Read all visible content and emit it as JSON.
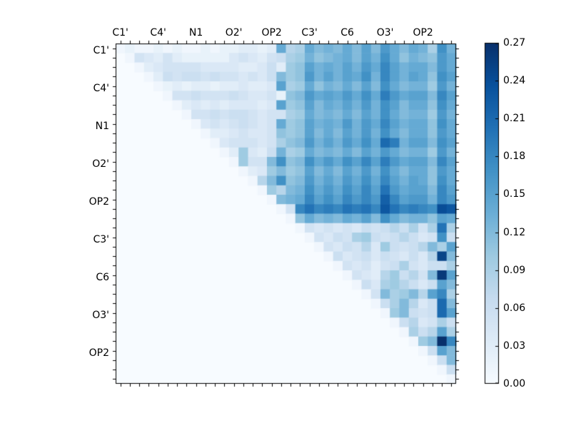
{
  "figure": {
    "background_color": "#ffffff",
    "frame_color": "#000000",
    "text_color": "#000000"
  },
  "chart_data": {
    "type": "heatmap",
    "title": "",
    "xlabel": "",
    "ylabel": "",
    "n": 36,
    "structure": "upper-triangular matrix, 36x36 cells, 9 group labels every 4 cells",
    "x_tick_labels": [
      "C1'",
      "C4'",
      "N1",
      "O2'",
      "OP2",
      "C3'",
      "C6",
      "O3'",
      "OP2"
    ],
    "y_tick_labels": [
      "C1'",
      "C4'",
      "N1",
      "O2'",
      "OP2",
      "C3'",
      "C6",
      "O3'",
      "OP2"
    ],
    "label_every_n_cells": 4,
    "vmin": 0.0,
    "vmax": 0.27,
    "colormap": "Blues",
    "colormap_stops": [
      [
        0.0,
        247,
        251,
        255
      ],
      [
        0.125,
        222,
        235,
        247
      ],
      [
        0.25,
        198,
        219,
        239
      ],
      [
        0.375,
        158,
        202,
        225
      ],
      [
        0.5,
        107,
        174,
        214
      ],
      [
        0.625,
        66,
        146,
        198
      ],
      [
        0.75,
        33,
        113,
        181
      ],
      [
        0.875,
        8,
        81,
        156
      ],
      [
        1.0,
        8,
        48,
        107
      ]
    ],
    "colorbar": {
      "tick_labels": [
        "0.00",
        "0.03",
        "0.06",
        "0.09",
        "0.12",
        "0.15",
        "0.18",
        "0.21",
        "0.24",
        "0.27"
      ],
      "tick_values": [
        0.0,
        0.03,
        0.06,
        0.09,
        0.12,
        0.15,
        0.18,
        0.21,
        0.24,
        0.27
      ],
      "orientation": "vertical",
      "position": "right"
    },
    "matrix": [
      [
        0.01,
        0.02,
        0.01,
        0.01,
        0.02,
        0.01,
        0.02,
        0.01,
        0.01,
        0.02,
        0.01,
        0.02,
        0.02,
        0.03,
        0.03,
        0.02,
        0.03,
        0.14,
        0.08,
        0.09,
        0.14,
        0.12,
        0.13,
        0.12,
        0.14,
        0.12,
        0.15,
        0.12,
        0.16,
        0.14,
        0.12,
        0.14,
        0.13,
        0.09,
        0.17,
        0.13
      ],
      [
        0,
        0.01,
        0.05,
        0.04,
        0.03,
        0.05,
        0.03,
        0.02,
        0.02,
        0.02,
        0.02,
        0.02,
        0.04,
        0.05,
        0.04,
        0.03,
        0.05,
        0.06,
        0.09,
        0.1,
        0.13,
        0.11,
        0.12,
        0.13,
        0.14,
        0.12,
        0.15,
        0.13,
        0.17,
        0.14,
        0.11,
        0.13,
        0.12,
        0.11,
        0.16,
        0.14
      ],
      [
        0,
        0,
        0.01,
        0.03,
        0.04,
        0.05,
        0.05,
        0.05,
        0.05,
        0.04,
        0.04,
        0.04,
        0.04,
        0.03,
        0.03,
        0.04,
        0.06,
        0.03,
        0.1,
        0.11,
        0.15,
        0.13,
        0.14,
        0.13,
        0.15,
        0.13,
        0.16,
        0.14,
        0.18,
        0.15,
        0.13,
        0.14,
        0.14,
        0.12,
        0.16,
        0.14
      ],
      [
        0,
        0,
        0,
        0.01,
        0.03,
        0.06,
        0.05,
        0.06,
        0.06,
        0.05,
        0.06,
        0.05,
        0.05,
        0.04,
        0.05,
        0.04,
        0.06,
        0.12,
        0.1,
        0.11,
        0.16,
        0.13,
        0.15,
        0.13,
        0.15,
        0.14,
        0.17,
        0.13,
        0.18,
        0.15,
        0.13,
        0.15,
        0.14,
        0.11,
        0.17,
        0.15
      ],
      [
        0,
        0,
        0,
        0,
        0.01,
        0.02,
        0.03,
        0.02,
        0.03,
        0.03,
        0.02,
        0.03,
        0.03,
        0.04,
        0.03,
        0.03,
        0.04,
        0.15,
        0.09,
        0.1,
        0.14,
        0.11,
        0.13,
        0.12,
        0.14,
        0.12,
        0.15,
        0.12,
        0.17,
        0.14,
        0.12,
        0.13,
        0.13,
        0.1,
        0.16,
        0.13
      ],
      [
        0,
        0,
        0,
        0,
        0,
        0.01,
        0.05,
        0.05,
        0.06,
        0.05,
        0.05,
        0.05,
        0.06,
        0.05,
        0.04,
        0.04,
        0.05,
        0.02,
        0.11,
        0.12,
        0.16,
        0.14,
        0.15,
        0.14,
        0.16,
        0.14,
        0.17,
        0.14,
        0.19,
        0.16,
        0.14,
        0.15,
        0.15,
        0.12,
        0.18,
        0.15
      ],
      [
        0,
        0,
        0,
        0,
        0,
        0,
        0.01,
        0.03,
        0.04,
        0.03,
        0.04,
        0.03,
        0.04,
        0.04,
        0.04,
        0.03,
        0.04,
        0.15,
        0.1,
        0.11,
        0.15,
        0.12,
        0.14,
        0.13,
        0.15,
        0.13,
        0.16,
        0.13,
        0.17,
        0.15,
        0.12,
        0.14,
        0.14,
        0.11,
        0.17,
        0.14
      ],
      [
        0,
        0,
        0,
        0,
        0,
        0,
        0,
        0.01,
        0.05,
        0.05,
        0.06,
        0.05,
        0.06,
        0.06,
        0.05,
        0.04,
        0.05,
        0.05,
        0.09,
        0.1,
        0.14,
        0.12,
        0.13,
        0.12,
        0.14,
        0.12,
        0.15,
        0.13,
        0.17,
        0.14,
        0.12,
        0.13,
        0.13,
        0.1,
        0.16,
        0.13
      ],
      [
        0,
        0,
        0,
        0,
        0,
        0,
        0,
        0,
        0.01,
        0.04,
        0.05,
        0.04,
        0.05,
        0.06,
        0.05,
        0.04,
        0.05,
        0.14,
        0.1,
        0.11,
        0.15,
        0.13,
        0.14,
        0.13,
        0.16,
        0.13,
        0.16,
        0.14,
        0.18,
        0.15,
        0.13,
        0.14,
        0.14,
        0.11,
        0.17,
        0.14
      ],
      [
        0,
        0,
        0,
        0,
        0,
        0,
        0,
        0,
        0,
        0.01,
        0.03,
        0.03,
        0.04,
        0.05,
        0.04,
        0.04,
        0.05,
        0.11,
        0.1,
        0.11,
        0.15,
        0.12,
        0.14,
        0.12,
        0.15,
        0.13,
        0.16,
        0.13,
        0.17,
        0.14,
        0.12,
        0.14,
        0.14,
        0.11,
        0.16,
        0.14
      ],
      [
        0,
        0,
        0,
        0,
        0,
        0,
        0,
        0,
        0,
        0,
        0.01,
        0.04,
        0.05,
        0.05,
        0.05,
        0.04,
        0.05,
        0.09,
        0.11,
        0.12,
        0.16,
        0.13,
        0.15,
        0.13,
        0.16,
        0.14,
        0.17,
        0.14,
        0.21,
        0.19,
        0.13,
        0.15,
        0.15,
        0.12,
        0.17,
        0.15
      ],
      [
        0,
        0,
        0,
        0,
        0,
        0,
        0,
        0,
        0,
        0,
        0,
        0.01,
        0.03,
        0.1,
        0.04,
        0.03,
        0.06,
        0.13,
        0.09,
        0.1,
        0.14,
        0.12,
        0.13,
        0.12,
        0.14,
        0.12,
        0.15,
        0.13,
        0.16,
        0.14,
        0.12,
        0.13,
        0.13,
        0.1,
        0.16,
        0.13
      ],
      [
        0,
        0,
        0,
        0,
        0,
        0,
        0,
        0,
        0,
        0,
        0,
        0,
        0.01,
        0.1,
        0.05,
        0.05,
        0.12,
        0.17,
        0.11,
        0.12,
        0.17,
        0.14,
        0.16,
        0.14,
        0.17,
        0.15,
        0.18,
        0.15,
        0.19,
        0.16,
        0.14,
        0.15,
        0.15,
        0.12,
        0.18,
        0.15
      ],
      [
        0,
        0,
        0,
        0,
        0,
        0,
        0,
        0,
        0,
        0,
        0,
        0,
        0,
        0.01,
        0.03,
        0.04,
        0.1,
        0.12,
        0.1,
        0.11,
        0.15,
        0.12,
        0.14,
        0.12,
        0.15,
        0.13,
        0.16,
        0.13,
        0.17,
        0.14,
        0.12,
        0.14,
        0.14,
        0.11,
        0.16,
        0.14
      ],
      [
        0,
        0,
        0,
        0,
        0,
        0,
        0,
        0,
        0,
        0,
        0,
        0,
        0,
        0,
        0.01,
        0.08,
        0.12,
        0.17,
        0.11,
        0.12,
        0.16,
        0.13,
        0.15,
        0.13,
        0.16,
        0.14,
        0.17,
        0.14,
        0.18,
        0.15,
        0.13,
        0.15,
        0.14,
        0.11,
        0.17,
        0.14
      ],
      [
        0,
        0,
        0,
        0,
        0,
        0,
        0,
        0,
        0,
        0,
        0,
        0,
        0,
        0,
        0,
        0.01,
        0.1,
        0.08,
        0.12,
        0.13,
        0.17,
        0.14,
        0.16,
        0.14,
        0.17,
        0.15,
        0.18,
        0.15,
        0.2,
        0.16,
        0.14,
        0.15,
        0.15,
        0.12,
        0.18,
        0.15
      ],
      [
        0,
        0,
        0,
        0,
        0,
        0,
        0,
        0,
        0,
        0,
        0,
        0,
        0,
        0,
        0,
        0,
        0.01,
        0.12,
        0.13,
        0.14,
        0.18,
        0.15,
        0.17,
        0.15,
        0.18,
        0.16,
        0.18,
        0.16,
        0.22,
        0.18,
        0.15,
        0.16,
        0.16,
        0.13,
        0.18,
        0.16
      ],
      [
        0,
        0,
        0,
        0,
        0,
        0,
        0,
        0,
        0,
        0,
        0,
        0,
        0,
        0,
        0,
        0,
        0,
        0.01,
        0.05,
        0.18,
        0.2,
        0.18,
        0.19,
        0.18,
        0.2,
        0.19,
        0.2,
        0.18,
        0.23,
        0.2,
        0.18,
        0.19,
        0.18,
        0.17,
        0.24,
        0.23
      ],
      [
        0,
        0,
        0,
        0,
        0,
        0,
        0,
        0,
        0,
        0,
        0,
        0,
        0,
        0,
        0,
        0,
        0,
        0,
        0.01,
        0.11,
        0.14,
        0.12,
        0.13,
        0.12,
        0.14,
        0.13,
        0.15,
        0.12,
        0.17,
        0.14,
        0.12,
        0.13,
        0.13,
        0.11,
        0.15,
        0.14
      ],
      [
        0,
        0,
        0,
        0,
        0,
        0,
        0,
        0,
        0,
        0,
        0,
        0,
        0,
        0,
        0,
        0,
        0,
        0,
        0,
        0.01,
        0.05,
        0.04,
        0.05,
        0.04,
        0.05,
        0.04,
        0.06,
        0.05,
        0.06,
        0.08,
        0.06,
        0.09,
        0.05,
        0.09,
        0.2,
        0.09
      ],
      [
        0,
        0,
        0,
        0,
        0,
        0,
        0,
        0,
        0,
        0,
        0,
        0,
        0,
        0,
        0,
        0,
        0,
        0,
        0,
        0,
        0.01,
        0.05,
        0.04,
        0.06,
        0.05,
        0.09,
        0.1,
        0.06,
        0.05,
        0.06,
        0.08,
        0.06,
        0.04,
        0.05,
        0.17,
        0.06
      ],
      [
        0,
        0,
        0,
        0,
        0,
        0,
        0,
        0,
        0,
        0,
        0,
        0,
        0,
        0,
        0,
        0,
        0,
        0,
        0,
        0,
        0,
        0.01,
        0.05,
        0.04,
        0.06,
        0.05,
        0.08,
        0.04,
        0.1,
        0.06,
        0.05,
        0.06,
        0.08,
        0.12,
        0.09,
        0.15
      ],
      [
        0,
        0,
        0,
        0,
        0,
        0,
        0,
        0,
        0,
        0,
        0,
        0,
        0,
        0,
        0,
        0,
        0,
        0,
        0,
        0,
        0,
        0,
        0.01,
        0.06,
        0.04,
        0.05,
        0.06,
        0.04,
        0.06,
        0.05,
        0.04,
        0.06,
        0.04,
        0.08,
        0.25,
        0.12
      ],
      [
        0,
        0,
        0,
        0,
        0,
        0,
        0,
        0,
        0,
        0,
        0,
        0,
        0,
        0,
        0,
        0,
        0,
        0,
        0,
        0,
        0,
        0,
        0,
        0.01,
        0.05,
        0.04,
        0.05,
        0.03,
        0.05,
        0.06,
        0.09,
        0.05,
        0.04,
        0.06,
        0.06,
        0.09
      ],
      [
        0,
        0,
        0,
        0,
        0,
        0,
        0,
        0,
        0,
        0,
        0,
        0,
        0,
        0,
        0,
        0,
        0,
        0,
        0,
        0,
        0,
        0,
        0,
        0,
        0.01,
        0.05,
        0.04,
        0.03,
        0.08,
        0.1,
        0.06,
        0.08,
        0.05,
        0.12,
        0.26,
        0.15
      ],
      [
        0,
        0,
        0,
        0,
        0,
        0,
        0,
        0,
        0,
        0,
        0,
        0,
        0,
        0,
        0,
        0,
        0,
        0,
        0,
        0,
        0,
        0,
        0,
        0,
        0,
        0.01,
        0.06,
        0.04,
        0.09,
        0.1,
        0.08,
        0.06,
        0.04,
        0.06,
        0.15,
        0.12
      ],
      [
        0,
        0,
        0,
        0,
        0,
        0,
        0,
        0,
        0,
        0,
        0,
        0,
        0,
        0,
        0,
        0,
        0,
        0,
        0,
        0,
        0,
        0,
        0,
        0,
        0,
        0,
        0.01,
        0.05,
        0.12,
        0.09,
        0.1,
        0.12,
        0.08,
        0.15,
        0.18,
        0.09
      ],
      [
        0,
        0,
        0,
        0,
        0,
        0,
        0,
        0,
        0,
        0,
        0,
        0,
        0,
        0,
        0,
        0,
        0,
        0,
        0,
        0,
        0,
        0,
        0,
        0,
        0,
        0,
        0,
        0.01,
        0.06,
        0.09,
        0.12,
        0.08,
        0.04,
        0.06,
        0.21,
        0.12
      ],
      [
        0,
        0,
        0,
        0,
        0,
        0,
        0,
        0,
        0,
        0,
        0,
        0,
        0,
        0,
        0,
        0,
        0,
        0,
        0,
        0,
        0,
        0,
        0,
        0,
        0,
        0,
        0,
        0,
        0.01,
        0.1,
        0.12,
        0.06,
        0.05,
        0.06,
        0.21,
        0.15
      ],
      [
        0,
        0,
        0,
        0,
        0,
        0,
        0,
        0,
        0,
        0,
        0,
        0,
        0,
        0,
        0,
        0,
        0,
        0,
        0,
        0,
        0,
        0,
        0,
        0,
        0,
        0,
        0,
        0,
        0,
        0.01,
        0.06,
        0.08,
        0.04,
        0.05,
        0.09,
        0.06
      ],
      [
        0,
        0,
        0,
        0,
        0,
        0,
        0,
        0,
        0,
        0,
        0,
        0,
        0,
        0,
        0,
        0,
        0,
        0,
        0,
        0,
        0,
        0,
        0,
        0,
        0,
        0,
        0,
        0,
        0,
        0,
        0.01,
        0.09,
        0.06,
        0.08,
        0.15,
        0.09
      ],
      [
        0,
        0,
        0,
        0,
        0,
        0,
        0,
        0,
        0,
        0,
        0,
        0,
        0,
        0,
        0,
        0,
        0,
        0,
        0,
        0,
        0,
        0,
        0,
        0,
        0,
        0,
        0,
        0,
        0,
        0,
        0,
        0.01,
        0.1,
        0.12,
        0.27,
        0.18
      ],
      [
        0,
        0,
        0,
        0,
        0,
        0,
        0,
        0,
        0,
        0,
        0,
        0,
        0,
        0,
        0,
        0,
        0,
        0,
        0,
        0,
        0,
        0,
        0,
        0,
        0,
        0,
        0,
        0,
        0,
        0,
        0,
        0,
        0.01,
        0.06,
        0.15,
        0.12
      ],
      [
        0,
        0,
        0,
        0,
        0,
        0,
        0,
        0,
        0,
        0,
        0,
        0,
        0,
        0,
        0,
        0,
        0,
        0,
        0,
        0,
        0,
        0,
        0,
        0,
        0,
        0,
        0,
        0,
        0,
        0,
        0,
        0,
        0,
        0.01,
        0.06,
        0.12
      ],
      [
        0,
        0,
        0,
        0,
        0,
        0,
        0,
        0,
        0,
        0,
        0,
        0,
        0,
        0,
        0,
        0,
        0,
        0,
        0,
        0,
        0,
        0,
        0,
        0,
        0,
        0,
        0,
        0,
        0,
        0,
        0,
        0,
        0,
        0,
        0.01,
        0.06
      ],
      [
        0,
        0,
        0,
        0,
        0,
        0,
        0,
        0,
        0,
        0,
        0,
        0,
        0,
        0,
        0,
        0,
        0,
        0,
        0,
        0,
        0,
        0,
        0,
        0,
        0,
        0,
        0,
        0,
        0,
        0,
        0,
        0,
        0,
        0,
        0,
        0.01
      ]
    ]
  }
}
